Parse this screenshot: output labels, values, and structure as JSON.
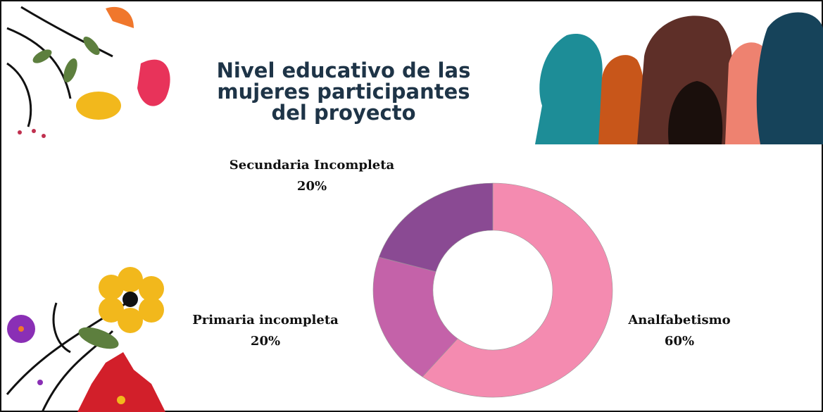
{
  "chart_data": {
    "type": "pie",
    "title_lines": [
      "Nivel educativo de las",
      "mujeres participantes",
      "del proyecto"
    ],
    "categories": [
      "Analfabetismo",
      "Primaria incompleta",
      "Secundaria Incompleta"
    ],
    "values": [
      60,
      20,
      20
    ],
    "value_labels": [
      "60%",
      "20%",
      "20%"
    ],
    "colors": [
      "#f48bb0",
      "#c462a9",
      "#8a4a93"
    ],
    "donut": true
  }
}
